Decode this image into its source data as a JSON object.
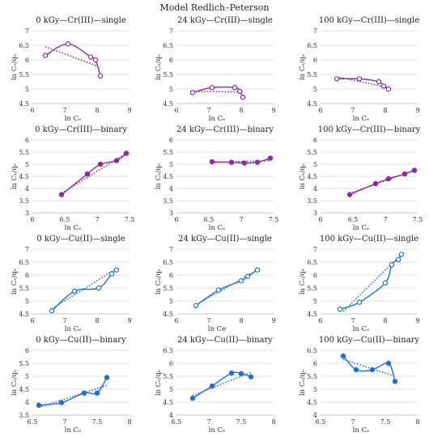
{
  "title": "Model Redlich–Peterson",
  "chart_data": [
    {
      "type": "scatter",
      "title": "0 kGy—Cr(III)—single",
      "xlabel": "ln Cₑ",
      "ylabel": "ln Cₑ/qₑ",
      "color": "#8b2aa3",
      "marker": "open",
      "xlim": [
        6,
        9
      ],
      "ylim": [
        4.5,
        7
      ],
      "xticks": [
        6,
        7,
        8,
        9
      ],
      "yticks": [
        4.5,
        5,
        5.5,
        6,
        6.5,
        7
      ],
      "ytick_labels": [
        "4.5",
        "5",
        "5.5",
        "6",
        "6.5",
        "7"
      ],
      "x": [
        6.4,
        7.1,
        7.8,
        7.95,
        8.1
      ],
      "y": [
        6.15,
        6.55,
        6.1,
        6.0,
        5.45
      ],
      "trend": [
        [
          6.4,
          6.45
        ],
        [
          8.1,
          5.75
        ]
      ]
    },
    {
      "type": "scatter",
      "title": "24 kGy—Cr(III)—single",
      "xlabel": "ln Cₑ",
      "ylabel": "ln Cₑ/qₑ",
      "color": "#8b2aa3",
      "marker": "open",
      "xlim": [
        6,
        9
      ],
      "ylim": [
        4.5,
        7
      ],
      "xticks": [
        6,
        7,
        8,
        9
      ],
      "yticks": [
        4.5,
        5,
        5.5,
        6,
        6.5,
        7
      ],
      "ytick_labels": [
        "4.5",
        "5",
        "5.5",
        "6",
        "6.5",
        "7"
      ],
      "x": [
        6.5,
        7.1,
        7.8,
        7.95,
        8.05
      ],
      "y": [
        4.88,
        5.05,
        5.05,
        4.92,
        4.72
      ],
      "trend": [
        [
          6.5,
          4.92
        ],
        [
          8.05,
          4.9
        ]
      ]
    },
    {
      "type": "scatter",
      "title": "100 kGy—Cr(III)—single",
      "xlabel": "ln Cₑ",
      "ylabel": "ln Cₑ/qₑ",
      "color": "#8b2aa3",
      "marker": "open",
      "xlim": [
        6,
        9
      ],
      "ylim": [
        4.5,
        7
      ],
      "xticks": [
        6,
        7,
        8,
        9
      ],
      "yticks": [
        4.5,
        5,
        5.5,
        6,
        6.5,
        7
      ],
      "ytick_labels": [
        "4.5",
        "5",
        "5.5",
        "6",
        "6.5",
        "7"
      ],
      "x": [
        6.5,
        7.2,
        7.8,
        7.95,
        8.1
      ],
      "y": [
        5.35,
        5.35,
        5.25,
        5.1,
        5.0
      ],
      "trend": [
        [
          6.5,
          5.42
        ],
        [
          8.1,
          5.05
        ]
      ]
    },
    {
      "type": "scatter",
      "title": "0 kGy—Cr(III)—binary",
      "xlabel": "ln Cₑ",
      "ylabel": "ln Cₑ/qₑ",
      "color": "#8b2aa3",
      "marker": "filled",
      "xlim": [
        6,
        7.5
      ],
      "ylim": [
        3,
        6
      ],
      "xticks": [
        6,
        6.5,
        7,
        7.5
      ],
      "yticks": [
        3,
        3.5,
        4,
        4.5,
        5,
        5.5,
        6
      ],
      "ytick_labels": [
        "3",
        "3.5",
        "4",
        "4.5",
        "5",
        "5.5",
        "6"
      ],
      "x": [
        6.45,
        6.85,
        7.05,
        7.3,
        7.45
      ],
      "y": [
        3.75,
        4.6,
        5.0,
        5.15,
        5.45
      ],
      "trend": [
        [
          6.45,
          3.8
        ],
        [
          7.45,
          5.45
        ]
      ]
    },
    {
      "type": "scatter",
      "title": "24 kGy—Cr(III)—binary",
      "xlabel": "ln Cₑ",
      "ylabel": "ln Cₑ/qₑ",
      "color": "#8b2aa3",
      "marker": "filled",
      "xlim": [
        6,
        7.5
      ],
      "ylim": [
        3,
        6
      ],
      "xticks": [
        6,
        6.5,
        7,
        7.5
      ],
      "yticks": [
        3,
        3.5,
        4,
        4.5,
        5,
        5.5,
        6
      ],
      "ytick_labels": [
        "3",
        "3.5",
        "4",
        "4.5",
        "5",
        "5.5",
        "6"
      ],
      "x": [
        6.55,
        6.85,
        7.05,
        7.25,
        7.45
      ],
      "y": [
        5.1,
        5.08,
        5.05,
        5.08,
        5.25
      ],
      "trend": [
        [
          6.55,
          5.07
        ],
        [
          7.45,
          5.15
        ]
      ]
    },
    {
      "type": "scatter",
      "title": "100 kGy—Cr(III)—binary",
      "xlabel": "ln Cₑ",
      "ylabel": "ln Cₑ/qₑ",
      "color": "#8b2aa3",
      "marker": "filled",
      "xlim": [
        6,
        7.5
      ],
      "ylim": [
        3,
        6
      ],
      "xticks": [
        6,
        6.5,
        7,
        7.5
      ],
      "yticks": [
        3,
        3.5,
        4,
        4.5,
        5,
        5.5,
        6
      ],
      "ytick_labels": [
        "3",
        "3.5",
        "4",
        "4.5",
        "5",
        "5.5",
        "6"
      ],
      "x": [
        6.45,
        6.85,
        7.05,
        7.3,
        7.45
      ],
      "y": [
        3.75,
        4.2,
        4.4,
        4.6,
        4.75
      ],
      "trend": [
        [
          6.45,
          3.8
        ],
        [
          7.45,
          4.75
        ]
      ]
    },
    {
      "type": "scatter",
      "title": "0 kGy—Cu(II)—single",
      "xlabel": "ln Cₑ",
      "ylabel": "ln Cₑ/qₑ",
      "color": "#1f6fd6",
      "marker": "open",
      "xlim": [
        6,
        9
      ],
      "ylim": [
        4.5,
        7
      ],
      "xticks": [
        6,
        7,
        8,
        9
      ],
      "yticks": [
        4.5,
        5,
        5.5,
        6,
        6.5,
        7
      ],
      "ytick_labels": [
        "4.5",
        "5",
        "5.5",
        "6",
        "6.5",
        "7"
      ],
      "x": [
        6.6,
        7.3,
        8.05,
        8.45,
        8.6
      ],
      "y": [
        4.62,
        5.38,
        5.5,
        6.05,
        6.2
      ],
      "trend": [
        [
          6.6,
          4.7
        ],
        [
          8.6,
          6.25
        ]
      ]
    },
    {
      "type": "scatter",
      "title": "24 kGy—Cu(II)—single",
      "xlabel": "ln Ce",
      "ylabel": "ln Cₑ/qₑ",
      "color": "#1f6fd6",
      "marker": "open",
      "xlim": [
        6,
        9
      ],
      "ylim": [
        4.5,
        7
      ],
      "xticks": [
        6,
        7,
        8,
        9
      ],
      "yticks": [
        4.5,
        5,
        5.5,
        6,
        6.5,
        7
      ],
      "ytick_labels": [
        "4.5",
        "5",
        "5.5",
        "6",
        "6.5",
        "7"
      ],
      "x": [
        6.6,
        7.3,
        8.0,
        8.2,
        8.5
      ],
      "y": [
        4.82,
        5.42,
        5.78,
        5.95,
        6.2
      ],
      "trend": [
        [
          6.6,
          4.85
        ],
        [
          8.5,
          6.2
        ]
      ]
    },
    {
      "type": "scatter",
      "title": "100 kGy—Cu(II)—single",
      "xlabel": "ln Cₑ",
      "ylabel": "ln Cₑ/qₑ",
      "color": "#1f6fd6",
      "marker": "open",
      "xlim": [
        6,
        9
      ],
      "ylim": [
        4.5,
        7
      ],
      "xticks": [
        6,
        7,
        8,
        9
      ],
      "yticks": [
        4.5,
        5,
        5.5,
        6,
        6.5,
        7
      ],
      "ytick_labels": [
        "4.5",
        "5",
        "5.5",
        "6",
        "6.5",
        "7"
      ],
      "x": [
        6.6,
        7.2,
        8.0,
        8.2,
        8.4,
        8.5
      ],
      "y": [
        4.68,
        4.95,
        5.7,
        6.4,
        6.6,
        6.8
      ],
      "trend": [
        [
          6.7,
          4.6
        ],
        [
          8.5,
          6.8
        ]
      ]
    },
    {
      "type": "scatter",
      "title": "0 kGy—Cu(II)—binary",
      "xlabel": "ln Cₑ",
      "ylabel": "ln Cₑ/qₑ",
      "color": "#1f6fd6",
      "marker": "filled",
      "xlim": [
        6.5,
        8
      ],
      "ylim": [
        3.5,
        6
      ],
      "xticks": [
        6.5,
        7,
        7.5,
        8
      ],
      "xtick_labels": [
        "6.5",
        "7",
        "7.5",
        "8"
      ],
      "yticks": [
        3.5,
        4,
        4.5,
        5,
        5.5,
        6
      ],
      "ytick_labels": [
        "3.5",
        "4",
        "4.5",
        "5",
        "5.5",
        "6"
      ],
      "x": [
        6.6,
        6.95,
        7.3,
        7.5,
        7.65
      ],
      "y": [
        3.88,
        3.98,
        4.35,
        4.35,
        4.95
      ],
      "trend": [
        [
          6.6,
          3.8
        ],
        [
          7.65,
          4.65
        ]
      ]
    },
    {
      "type": "scatter",
      "title": "24 kGy—Cu(II)—binary",
      "xlabel": "ln Cₑ",
      "ylabel": "ln Cₑ/qₑ",
      "color": "#1f6fd6",
      "marker": "filled",
      "xlim": [
        6.5,
        8
      ],
      "ylim": [
        4,
        6.5
      ],
      "xticks": [
        6.5,
        7,
        7.5,
        8
      ],
      "xtick_labels": [
        "6.5",
        "7",
        "7.5",
        "8"
      ],
      "yticks": [
        4,
        4.5,
        5,
        5.5,
        6,
        6.5
      ],
      "ytick_labels": [
        "4",
        "4.5",
        "5",
        "5.5",
        "6",
        "6.5"
      ],
      "x": [
        6.75,
        7.05,
        7.35,
        7.5,
        7.65
      ],
      "y": [
        4.65,
        5.12,
        5.62,
        5.6,
        5.48
      ],
      "trend": [
        [
          6.75,
          4.75
        ],
        [
          7.65,
          5.65
        ]
      ]
    },
    {
      "type": "scatter",
      "title": "100 kGy—Cu(II)—binary",
      "xlabel": "ln Cₑ",
      "ylabel": "ln Cₑ/qₑ",
      "color": "#1f6fd6",
      "marker": "filled",
      "xlim": [
        6.5,
        8
      ],
      "ylim": [
        4,
        6.5
      ],
      "xticks": [
        6.5,
        7,
        7.5,
        8
      ],
      "xtick_labels": [
        "6.5",
        "7",
        "7.5",
        "8"
      ],
      "yticks": [
        4,
        4.5,
        5,
        5.5,
        6,
        6.5
      ],
      "ytick_labels": [
        "4",
        "4.5",
        "5",
        "5.5",
        "6",
        "6.5"
      ],
      "x": [
        6.85,
        7.05,
        7.3,
        7.55,
        7.65
      ],
      "y": [
        6.28,
        5.75,
        5.75,
        6.0,
        5.3
      ],
      "trend": [
        [
          6.85,
          6.15
        ],
        [
          7.65,
          5.5
        ]
      ]
    }
  ]
}
